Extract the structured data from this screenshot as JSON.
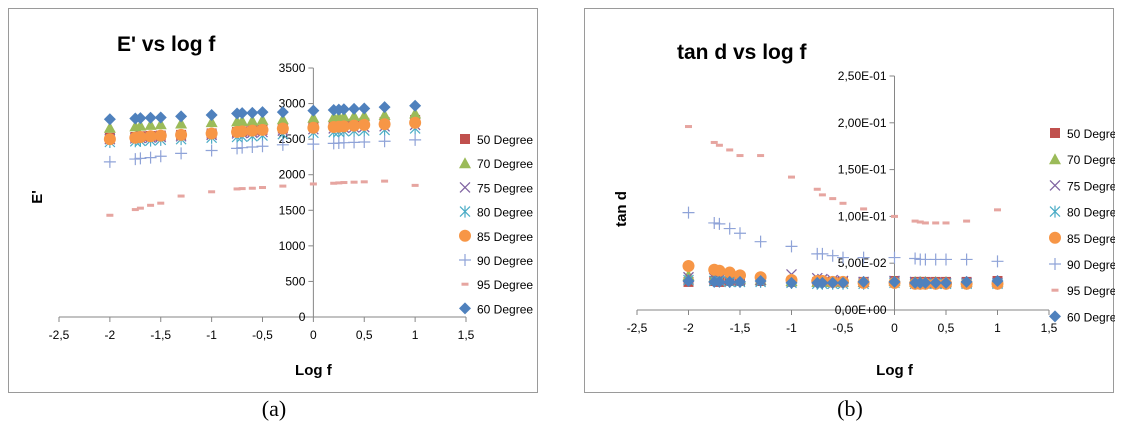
{
  "captions": [
    "(a)",
    "(b)"
  ],
  "chart_data": [
    {
      "type": "scatter",
      "title": "E' vs log f",
      "xlabel": "Log f",
      "ylabel": "E'",
      "xlim": [
        -2.5,
        1.5
      ],
      "ylim": [
        0,
        3500
      ],
      "x_ticks": [
        -2.5,
        -2,
        -1.5,
        -1,
        -0.5,
        0,
        0.5,
        1,
        1.5
      ],
      "x_tick_labels": [
        "-2,5",
        "-2",
        "-1,5",
        "-1",
        "-0,5",
        "0",
        "0,5",
        "1",
        "1,5"
      ],
      "y_ticks": [
        0,
        500,
        1000,
        1500,
        2000,
        2500,
        3000,
        3500
      ],
      "y_tick_labels": [
        "0",
        "500",
        "1000",
        "1500",
        "2000",
        "2500",
        "3000",
        "3500"
      ],
      "x": [
        -2,
        -1.75,
        -1.7,
        -1.6,
        -1.5,
        -1.3,
        -1,
        -0.75,
        -0.7,
        -0.6,
        -0.5,
        -0.3,
        0,
        0.2,
        0.25,
        0.3,
        0.4,
        0.5,
        0.7,
        1
      ],
      "legend_position": "right",
      "series": [
        {
          "name": "50 Degree",
          "color": "#c0504d",
          "marker": "square",
          "values": [
            2520,
            2530,
            2540,
            2545,
            2550,
            2560,
            2580,
            2600,
            2610,
            2620,
            2630,
            2650,
            2680,
            2700,
            2710,
            2715,
            2720,
            2730,
            2740,
            2770
          ]
        },
        {
          "name": "70 Degree",
          "color": "#9bbb59",
          "marker": "triangle",
          "values": [
            2660,
            2680,
            2690,
            2700,
            2710,
            2720,
            2740,
            2750,
            2755,
            2760,
            2770,
            2780,
            2800,
            2810,
            2815,
            2820,
            2825,
            2830,
            2840,
            2860
          ]
        },
        {
          "name": "75 Degree",
          "color": "#8064a2",
          "marker": "x",
          "values": [
            2500,
            2510,
            2515,
            2520,
            2530,
            2540,
            2560,
            2580,
            2585,
            2590,
            2600,
            2620,
            2640,
            2650,
            2655,
            2660,
            2665,
            2670,
            2680,
            2700
          ]
        },
        {
          "name": "80 Degree",
          "color": "#4bacc6",
          "marker": "asterisk",
          "values": [
            2460,
            2470,
            2475,
            2480,
            2490,
            2500,
            2520,
            2530,
            2535,
            2540,
            2550,
            2570,
            2590,
            2600,
            2605,
            2610,
            2615,
            2620,
            2630,
            2650
          ]
        },
        {
          "name": "85 Degree",
          "color": "#f79646",
          "marker": "circle",
          "values": [
            2500,
            2520,
            2530,
            2540,
            2550,
            2560,
            2580,
            2600,
            2610,
            2620,
            2630,
            2650,
            2660,
            2670,
            2675,
            2680,
            2690,
            2700,
            2710,
            2730
          ]
        },
        {
          "name": "90 Degree",
          "color": "#8fa3d8",
          "marker": "plus",
          "values": [
            2180,
            2220,
            2230,
            2240,
            2260,
            2300,
            2340,
            2370,
            2380,
            2390,
            2400,
            2420,
            2430,
            2440,
            2445,
            2450,
            2455,
            2460,
            2470,
            2490
          ]
        },
        {
          "name": "95 Degree",
          "color": "#e6a5a0",
          "marker": "dash",
          "values": [
            1430,
            1510,
            1530,
            1570,
            1600,
            1700,
            1760,
            1800,
            1805,
            1810,
            1820,
            1840,
            1870,
            1880,
            1885,
            1890,
            1895,
            1900,
            1910,
            1850
          ]
        },
        {
          "name": "60 Degree",
          "color": "#4f81bd",
          "marker": "diamond",
          "values": [
            2780,
            2790,
            2795,
            2800,
            2805,
            2820,
            2840,
            2860,
            2865,
            2870,
            2880,
            2880,
            2900,
            2910,
            2915,
            2920,
            2925,
            2930,
            2950,
            2970
          ]
        }
      ]
    },
    {
      "type": "scatter",
      "title": "tan d vs log f",
      "xlabel": "Log f",
      "ylabel": "tan d",
      "xlim": [
        -2.5,
        1.5
      ],
      "ylim": [
        0,
        0.25
      ],
      "x_ticks": [
        -2.5,
        -2,
        -1.5,
        -1,
        -0.5,
        0,
        0.5,
        1,
        1.5
      ],
      "x_tick_labels": [
        "-2,5",
        "-2",
        "-1,5",
        "-1",
        "-0,5",
        "0",
        "0,5",
        "1",
        "1,5"
      ],
      "y_ticks": [
        0,
        0.05,
        0.1,
        0.15,
        0.2,
        0.25
      ],
      "y_tick_labels": [
        "0,00E+00",
        "5,00E-02",
        "1,00E-01",
        "1,50E-01",
        "2,00E-01",
        "2,50E-01"
      ],
      "x": [
        -2,
        -1.75,
        -1.7,
        -1.6,
        -1.5,
        -1.3,
        -1,
        -0.75,
        -0.7,
        -0.6,
        -0.5,
        -0.3,
        0,
        0.2,
        0.25,
        0.3,
        0.4,
        0.5,
        0.7,
        1
      ],
      "legend_position": "right",
      "series": [
        {
          "name": "50 Degree",
          "color": "#c0504d",
          "marker": "square",
          "values": [
            0.03,
            0.031,
            0.03,
            0.031,
            0.031,
            0.031,
            0.03,
            0.03,
            0.03,
            0.03,
            0.03,
            0.03,
            0.031,
            0.03,
            0.03,
            0.03,
            0.03,
            0.03,
            0.03,
            0.031
          ]
        },
        {
          "name": "70 Degree",
          "color": "#9bbb59",
          "marker": "triangle",
          "values": [
            0.037,
            0.035,
            0.034,
            0.033,
            0.033,
            0.032,
            0.031,
            0.03,
            0.03,
            0.03,
            0.03,
            0.03,
            0.031,
            0.03,
            0.03,
            0.03,
            0.03,
            0.03,
            0.03,
            0.03
          ]
        },
        {
          "name": "75 Degree",
          "color": "#8064a2",
          "marker": "x",
          "values": [
            0.035,
            0.034,
            0.033,
            0.033,
            0.032,
            0.032,
            0.038,
            0.034,
            0.033,
            0.032,
            0.031,
            0.03,
            0.031,
            0.03,
            0.029,
            0.029,
            0.029,
            0.029,
            0.029,
            0.029
          ]
        },
        {
          "name": "80 Degree",
          "color": "#4bacc6",
          "marker": "asterisk",
          "values": [
            0.032,
            0.031,
            0.031,
            0.03,
            0.03,
            0.03,
            0.029,
            0.028,
            0.028,
            0.028,
            0.028,
            0.028,
            0.029,
            0.028,
            0.028,
            0.028,
            0.028,
            0.028,
            0.028,
            0.028
          ]
        },
        {
          "name": "85 Degree",
          "color": "#f79646",
          "marker": "circle",
          "values": [
            0.047,
            0.043,
            0.042,
            0.04,
            0.037,
            0.035,
            0.032,
            0.031,
            0.031,
            0.03,
            0.03,
            0.029,
            0.029,
            0.028,
            0.028,
            0.028,
            0.028,
            0.028,
            0.028,
            0.028
          ]
        },
        {
          "name": "90 Degree",
          "color": "#8fa3d8",
          "marker": "plus",
          "values": [
            0.104,
            0.093,
            0.092,
            0.087,
            0.082,
            0.073,
            0.068,
            0.06,
            0.06,
            0.058,
            0.056,
            0.056,
            0.056,
            0.055,
            0.054,
            0.054,
            0.054,
            0.054,
            0.054,
            0.052
          ]
        },
        {
          "name": "95 Degree",
          "color": "#e6a5a0",
          "marker": "dash",
          "values": [
            0.196,
            0.179,
            0.176,
            0.171,
            0.165,
            0.165,
            0.142,
            0.129,
            0.123,
            0.119,
            0.114,
            0.108,
            0.1,
            0.095,
            0.094,
            0.093,
            0.093,
            0.093,
            0.095,
            0.107
          ]
        },
        {
          "name": "60 Degree",
          "color": "#4f81bd",
          "marker": "diamond",
          "values": [
            0.031,
            0.03,
            0.03,
            0.03,
            0.03,
            0.031,
            0.029,
            0.029,
            0.029,
            0.029,
            0.029,
            0.03,
            0.03,
            0.029,
            0.029,
            0.029,
            0.029,
            0.029,
            0.03,
            0.031
          ]
        }
      ]
    }
  ]
}
